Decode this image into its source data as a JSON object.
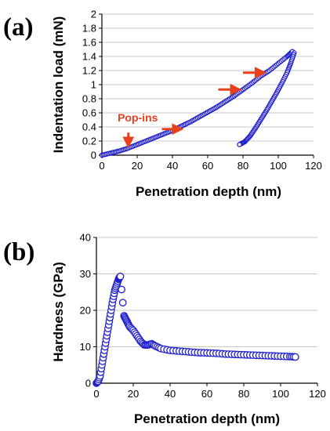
{
  "colors": {
    "marker": "#1f1fcc",
    "annotation": "#e8401c",
    "grid": "#c8c8c8",
    "axis": "#000000"
  },
  "chart_data": [
    {
      "type": "scatter",
      "panel_label": "(a)",
      "xlabel": "Penetration depth (nm)",
      "ylabel": "Indentation load (mN)",
      "xlim": [
        0,
        120
      ],
      "ylim": [
        0,
        2
      ],
      "xticks": [
        "0",
        "20",
        "40",
        "60",
        "80",
        "100",
        "120"
      ],
      "yticks": [
        "0",
        "0.2",
        "0.4",
        "0.6",
        "0.8",
        "1",
        "1.2",
        "1.4",
        "1.6",
        "1.8",
        "2"
      ],
      "grid": "horizontal",
      "series": [
        {
          "role": "loading",
          "x": [
            0,
            5,
            10,
            15,
            20,
            25,
            30,
            35,
            40,
            45,
            50,
            55,
            60,
            65,
            70,
            75,
            80,
            85,
            90,
            95,
            100,
            105,
            108
          ],
          "y": [
            0,
            0.03,
            0.06,
            0.1,
            0.15,
            0.2,
            0.25,
            0.3,
            0.35,
            0.41,
            0.47,
            0.54,
            0.61,
            0.68,
            0.76,
            0.84,
            0.93,
            1.02,
            1.12,
            1.2,
            1.3,
            1.4,
            1.47
          ]
        },
        {
          "role": "unloading",
          "x": [
            109,
            107,
            105,
            102,
            99,
            96,
            93,
            90,
            87,
            84,
            81,
            78
          ],
          "y": [
            1.45,
            1.3,
            1.17,
            1.02,
            0.88,
            0.75,
            0.62,
            0.5,
            0.38,
            0.27,
            0.19,
            0.15
          ]
        }
      ],
      "annotations": [
        {
          "text": "Pop-ins",
          "x": 15,
          "y": 0.48
        }
      ],
      "arrows": [
        {
          "type": "down",
          "x": 15,
          "y_from": 0.32,
          "y_to": 0.13
        },
        {
          "type": "right",
          "x_from": 34,
          "x_to": 45,
          "y": 0.37
        },
        {
          "type": "right",
          "x_from": 66,
          "x_to": 78,
          "y": 0.93
        },
        {
          "type": "right",
          "x_from": 80,
          "x_to": 92,
          "y": 1.17
        }
      ]
    },
    {
      "type": "scatter",
      "panel_label": "(b)",
      "xlabel": "Penetration depth (nm)",
      "ylabel": "Hardness (GPa)",
      "xlim": [
        0,
        120
      ],
      "ylim": [
        0,
        40
      ],
      "xticks": [
        "0",
        "20",
        "40",
        "60",
        "80",
        "100",
        "120"
      ],
      "yticks": [
        "0",
        "10",
        "20",
        "30",
        "40"
      ],
      "grid": "horizontal",
      "series": [
        {
          "x": [
            0,
            1,
            2,
            3,
            4,
            5,
            6,
            7,
            8,
            9,
            10,
            11,
            12,
            12.5,
            13,
            15,
            16,
            17,
            18,
            20,
            22,
            24,
            26,
            28,
            30,
            32,
            35,
            40,
            45,
            50,
            55,
            60,
            65,
            70,
            75,
            80,
            85,
            90,
            95,
            100,
            105,
            108
          ],
          "y": [
            0,
            0.5,
            2,
            5,
            8,
            11,
            14,
            17,
            20,
            23,
            25.5,
            27,
            28.5,
            29,
            29.3,
            18.5,
            17.5,
            16.5,
            15.5,
            14.5,
            13,
            11.5,
            10.5,
            10.5,
            10.8,
            10.2,
            9.5,
            9,
            8.8,
            8.6,
            8.4,
            8.3,
            8.2,
            8,
            7.9,
            7.8,
            7.7,
            7.6,
            7.5,
            7.4,
            7.3,
            7.2
          ]
        }
      ]
    }
  ]
}
